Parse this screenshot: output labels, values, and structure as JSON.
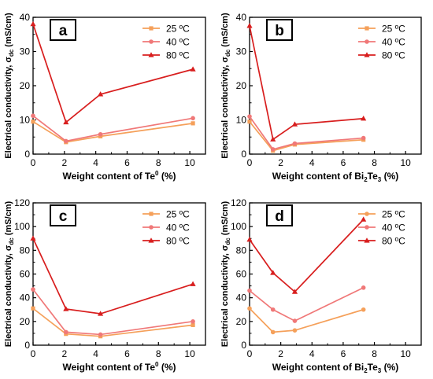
{
  "chart_data": [
    {
      "type": "line",
      "panel_letter": "a",
      "xlabel": "Weight content of Te⁰ (%)",
      "xlabel_parts": [
        "Weight content of Te",
        "0",
        " (%)"
      ],
      "ylabel_parts": [
        "Electrical conductivity, σ",
        "dc",
        " (mS/cm)"
      ],
      "xlim": [
        0,
        11
      ],
      "ylim": [
        0,
        40
      ],
      "xticks": [
        0,
        2,
        4,
        6,
        8,
        10
      ],
      "yticks": [
        0,
        10,
        20,
        30,
        40
      ],
      "legend_position": "top-right",
      "series": [
        {
          "name": "25 ºC",
          "color": "#f5a05a",
          "marker": "square",
          "x": [
            0,
            2.1,
            4.3,
            10.2
          ],
          "y": [
            9.5,
            3.5,
            5.2,
            9.0
          ]
        },
        {
          "name": "40 ºC",
          "color": "#f07878",
          "marker": "circle",
          "x": [
            0,
            2.1,
            4.3,
            10.2
          ],
          "y": [
            11.2,
            3.8,
            5.8,
            10.5
          ]
        },
        {
          "name": "80 ºC",
          "color": "#d81e1e",
          "marker": "triangle",
          "x": [
            0,
            2.1,
            4.3,
            10.2
          ],
          "y": [
            38.0,
            9.3,
            17.5,
            24.8
          ]
        }
      ]
    },
    {
      "type": "line",
      "panel_letter": "b",
      "xlabel": "Weight content of Bi₂Te₃ (%)",
      "xlabel_parts": [
        "Weight content of Bi",
        "2",
        "Te",
        "3",
        " (%)"
      ],
      "ylabel_parts": [
        "Electrical conductivity, σ",
        "dc",
        " (mS/cm)"
      ],
      "xlim": [
        0,
        11
      ],
      "ylim": [
        0,
        40
      ],
      "xticks": [
        0,
        2,
        4,
        6,
        8,
        10
      ],
      "yticks": [
        0,
        10,
        20,
        30,
        40
      ],
      "legend_position": "top-right",
      "series": [
        {
          "name": "25 ºC",
          "color": "#f5a05a",
          "marker": "square",
          "x": [
            0,
            1.5,
            2.9,
            7.3
          ],
          "y": [
            9.5,
            1.0,
            2.8,
            4.2
          ]
        },
        {
          "name": "40 ºC",
          "color": "#f07878",
          "marker": "circle",
          "x": [
            0,
            1.5,
            2.9,
            7.3
          ],
          "y": [
            11.0,
            1.4,
            3.1,
            4.7
          ]
        },
        {
          "name": "80 ºC",
          "color": "#d81e1e",
          "marker": "triangle",
          "x": [
            0,
            1.5,
            2.9,
            7.3
          ],
          "y": [
            37.5,
            4.3,
            8.7,
            10.4
          ]
        }
      ]
    },
    {
      "type": "line",
      "panel_letter": "c",
      "xlabel": "Weight content of Te⁰ (%)",
      "xlabel_parts": [
        "Weight content of Te",
        "0",
        " (%)"
      ],
      "ylabel_parts": [
        "Electrical conductivity, σ",
        "dc",
        " (mS/cm)"
      ],
      "xlim": [
        0,
        11
      ],
      "ylim": [
        0,
        120
      ],
      "xticks": [
        0,
        2,
        4,
        6,
        8,
        10
      ],
      "yticks": [
        0,
        20,
        40,
        60,
        80,
        100,
        120
      ],
      "legend_position": "top-right",
      "series": [
        {
          "name": "25 ºC",
          "color": "#f5a05a",
          "marker": "square",
          "x": [
            0,
            2.1,
            4.3,
            10.2
          ],
          "y": [
            31.0,
            9.5,
            7.5,
            17.0
          ]
        },
        {
          "name": "40 ºC",
          "color": "#f07878",
          "marker": "circle",
          "x": [
            0,
            2.1,
            4.3,
            10.2
          ],
          "y": [
            47.0,
            11.0,
            9.0,
            20.0
          ]
        },
        {
          "name": "80 ºC",
          "color": "#d81e1e",
          "marker": "triangle",
          "x": [
            0,
            2.1,
            4.3,
            10.2
          ],
          "y": [
            90.0,
            30.5,
            26.5,
            51.5
          ]
        }
      ]
    },
    {
      "type": "line",
      "panel_letter": "d",
      "xlabel": "Weight content of Bi₂Te₃ (%)",
      "xlabel_parts": [
        "Weight content of Bi",
        "2",
        "Te",
        "3",
        " (%)"
      ],
      "ylabel_parts": [
        "Electrical conductivity, σ",
        "dc",
        " (mS/cm)"
      ],
      "xlim": [
        0,
        11
      ],
      "ylim": [
        0,
        120
      ],
      "xticks": [
        0,
        2,
        4,
        6,
        8,
        10
      ],
      "yticks": [
        0,
        20,
        40,
        60,
        80,
        100,
        120
      ],
      "legend_position": "top-right",
      "series": [
        {
          "name": "25 ºC",
          "color": "#f5a05a",
          "marker": "circle",
          "x": [
            0,
            1.5,
            2.9,
            7.3
          ],
          "y": [
            31.0,
            11.0,
            12.5,
            30.0
          ]
        },
        {
          "name": "40 ºC",
          "color": "#f07878",
          "marker": "circle",
          "x": [
            0,
            1.5,
            2.9,
            7.3
          ],
          "y": [
            46.0,
            30.0,
            20.5,
            48.5
          ]
        },
        {
          "name": "80 ºC",
          "color": "#d81e1e",
          "marker": "triangle",
          "x": [
            0,
            1.5,
            2.9,
            7.3
          ],
          "y": [
            89.0,
            61.0,
            45.0,
            106.0
          ]
        }
      ]
    }
  ]
}
